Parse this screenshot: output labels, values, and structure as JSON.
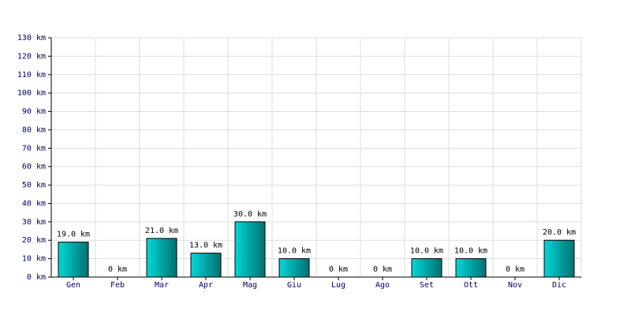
{
  "chart_data": {
    "type": "bar",
    "categories": [
      "Gen",
      "Feb",
      "Mar",
      "Apr",
      "Mag",
      "Giu",
      "Lug",
      "Ago",
      "Set",
      "Ott",
      "Nov",
      "Dic"
    ],
    "values": [
      19,
      0,
      21,
      13,
      30,
      10,
      0,
      0,
      10,
      10,
      0,
      20
    ],
    "value_labels": [
      "19.0 km",
      "0 km",
      "21.0 km",
      "13.0 km",
      "30.0 km",
      "10.0 km",
      "0 km",
      "0 km",
      "10.0 km",
      "10.0 km",
      "0 km",
      "20.0 km"
    ],
    "color": "#00d8d8",
    "ylim": [
      0,
      130
    ],
    "yticks": [
      {
        "value": 0,
        "label": "0 km"
      },
      {
        "value": 10,
        "label": "10 km"
      },
      {
        "value": 20,
        "label": "20 km"
      },
      {
        "value": 30,
        "label": "30 km"
      },
      {
        "value": 40,
        "label": "40 km"
      },
      {
        "value": 50,
        "label": "50 km"
      },
      {
        "value": 60,
        "label": "60 km"
      },
      {
        "value": 70,
        "label": "70 km"
      },
      {
        "value": 80,
        "label": "80 km"
      },
      {
        "value": 90,
        "label": "90 km"
      },
      {
        "value": 100,
        "label": "100 km"
      },
      {
        "value": 110,
        "label": "110 km"
      },
      {
        "value": 120,
        "label": "120 km"
      },
      {
        "value": 130,
        "label": "130 km"
      }
    ],
    "grid": true
  }
}
